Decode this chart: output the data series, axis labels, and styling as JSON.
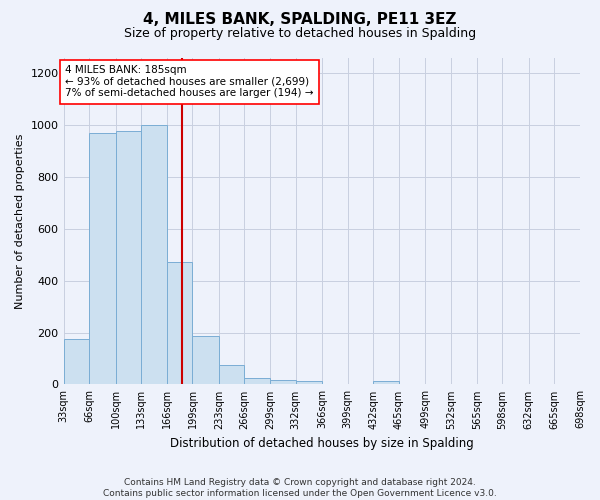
{
  "title": "4, MILES BANK, SPALDING, PE11 3EZ",
  "subtitle": "Size of property relative to detached houses in Spalding",
  "xlabel": "Distribution of detached houses by size in Spalding",
  "ylabel": "Number of detached properties",
  "bar_color": "#cce0f0",
  "bar_edge_color": "#7aadd4",
  "vline_color": "#cc0000",
  "annotation_text": "4 MILES BANK: 185sqm\n← 93% of detached houses are smaller (2,699)\n7% of semi-detached houses are larger (194) →",
  "bin_edges": [
    33,
    66,
    100,
    133,
    166,
    199,
    233,
    266,
    299,
    332,
    366,
    399,
    432,
    465,
    499,
    532,
    565,
    598,
    632,
    665,
    698
  ],
  "tick_labels": [
    "33sqm",
    "66sqm",
    "100sqm",
    "133sqm",
    "166sqm",
    "199sqm",
    "233sqm",
    "266sqm",
    "299sqm",
    "332sqm",
    "366sqm",
    "399sqm",
    "432sqm",
    "465sqm",
    "499sqm",
    "532sqm",
    "565sqm",
    "598sqm",
    "632sqm",
    "665sqm",
    "698sqm"
  ],
  "values": [
    175,
    970,
    975,
    1000,
    470,
    185,
    75,
    25,
    18,
    12,
    0,
    0,
    12,
    0,
    0,
    0,
    0,
    0,
    0,
    0
  ],
  "vline_pos": 185,
  "ylim": [
    0,
    1260
  ],
  "yticks": [
    0,
    200,
    400,
    600,
    800,
    1000,
    1200
  ],
  "footer": "Contains HM Land Registry data © Crown copyright and database right 2024.\nContains public sector information licensed under the Open Government Licence v3.0.",
  "background_color": "#eef2fb",
  "grid_color": "#c8cfe0",
  "title_fontsize": 11,
  "subtitle_fontsize": 9
}
